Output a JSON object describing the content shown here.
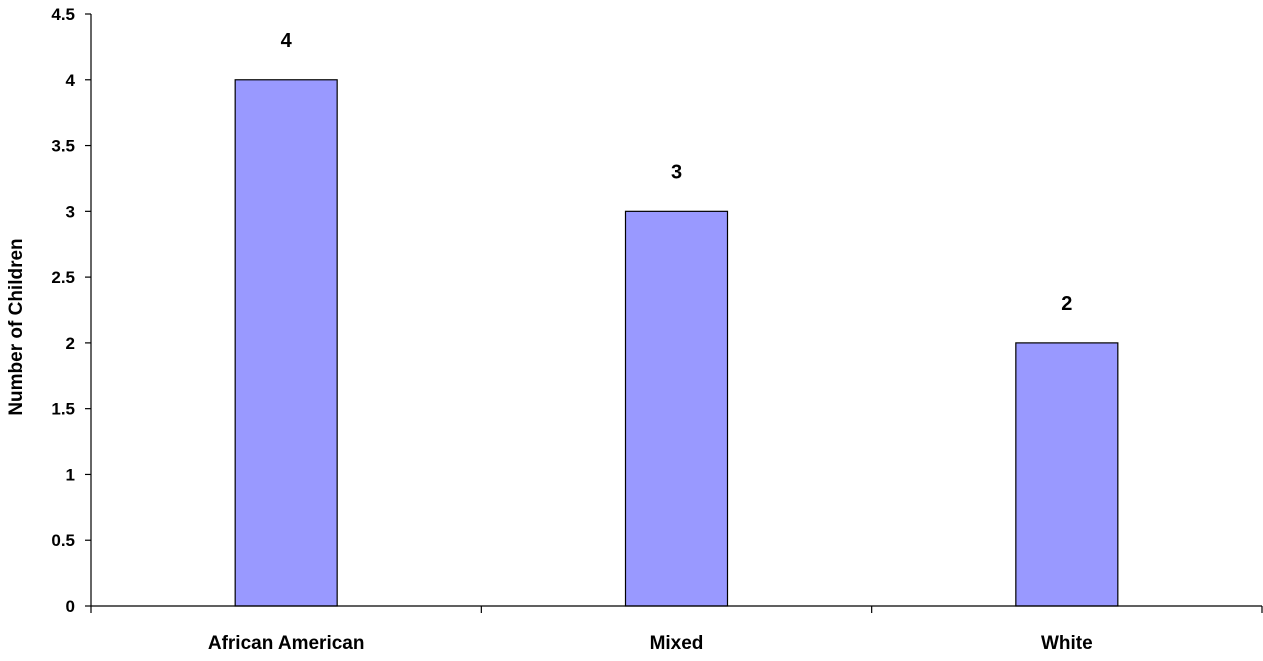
{
  "chart_data": {
    "type": "bar",
    "categories": [
      "African American",
      "Mixed",
      "White"
    ],
    "values": [
      4,
      3,
      2
    ],
    "data_labels": [
      "4",
      "3",
      "2"
    ],
    "title": "",
    "xlabel": "",
    "ylabel": "Number of Children",
    "ylim": [
      0,
      4.5
    ],
    "yticks": [
      0,
      0.5,
      1,
      1.5,
      2,
      2.5,
      3,
      3.5,
      4,
      4.5
    ],
    "ytick_labels": [
      "0",
      "0.5",
      "1",
      "1.5",
      "2",
      "2.5",
      "3",
      "3.5",
      "4",
      "4.5"
    ],
    "grid": false,
    "legend": "none",
    "colors": {
      "bar_fill": "#9999ff",
      "bar_stroke": "#000000",
      "axis": "#000000"
    }
  }
}
